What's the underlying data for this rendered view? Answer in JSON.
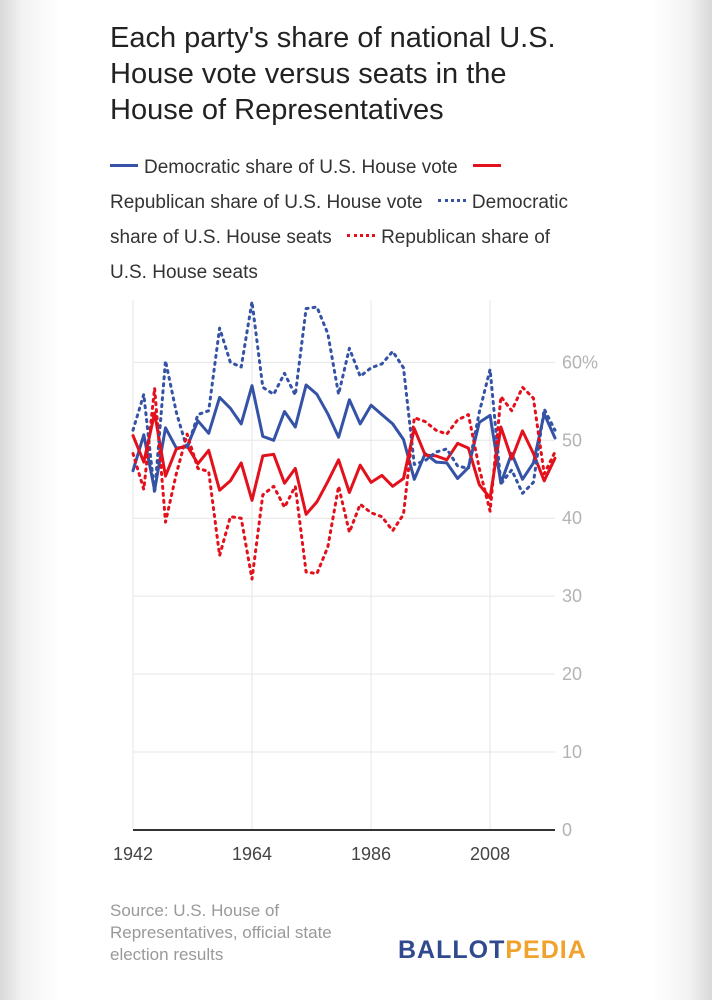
{
  "chart_data": {
    "type": "line",
    "title": "Each party's share of national U.S. House vote versus seats in the House of Representatives",
    "xlabel": "",
    "ylabel": "",
    "xlim": [
      1942,
      2020
    ],
    "ylim": [
      0,
      68
    ],
    "y_ticks": [
      0,
      10,
      20,
      30,
      40,
      50,
      60
    ],
    "y_tick_labels": [
      "0",
      "10",
      "20",
      "30",
      "40",
      "50",
      "60%"
    ],
    "x_tick_labels": [
      "1942",
      "1964",
      "1986",
      "2008"
    ],
    "legend": [
      "Democratic share of U.S. House vote",
      "Republican share of U.S. House vote",
      "Democratic share of U.S. House seats",
      "Republican share of U.S. House seats"
    ],
    "x": [
      1942,
      1944,
      1946,
      1948,
      1950,
      1952,
      1954,
      1956,
      1958,
      1960,
      1962,
      1964,
      1966,
      1968,
      1970,
      1972,
      1974,
      1976,
      1978,
      1980,
      1982,
      1984,
      1986,
      1988,
      1990,
      1992,
      1994,
      1996,
      1998,
      2000,
      2002,
      2004,
      2006,
      2008,
      2010,
      2012,
      2014,
      2016,
      2018,
      2020
    ],
    "series": [
      {
        "name": "Democratic share of U.S. House vote",
        "color": "#3553a6",
        "style": "solid",
        "values": [
          46.1,
          50.7,
          43.6,
          51.6,
          49.0,
          49.2,
          52.5,
          50.9,
          55.5,
          54.1,
          52.1,
          57.0,
          50.5,
          50.0,
          53.7,
          51.7,
          57.1,
          55.9,
          53.4,
          50.4,
          55.2,
          52.1,
          54.5,
          53.3,
          52.1,
          50.1,
          45.0,
          48.3,
          47.2,
          47.1,
          45.1,
          46.5,
          52.3,
          53.2,
          44.5,
          48.3,
          45.0,
          47.1,
          53.4,
          50.3
        ]
      },
      {
        "name": "Republican share of U.S. House vote",
        "color": "#e2111c",
        "style": "solid",
        "values": [
          50.6,
          47.2,
          53.5,
          45.4,
          48.9,
          49.3,
          47.0,
          48.7,
          43.6,
          44.8,
          47.1,
          42.3,
          48.0,
          48.2,
          44.5,
          46.4,
          40.5,
          42.1,
          44.7,
          47.5,
          43.3,
          46.8,
          44.6,
          45.5,
          44.1,
          45.1,
          51.5,
          48.1,
          48.0,
          47.5,
          49.6,
          49.0,
          44.3,
          42.6,
          51.7,
          47.6,
          51.2,
          48.3,
          44.8,
          47.7
        ]
      },
      {
        "name": "Democratic share of U.S. House seats",
        "color": "#3553a6",
        "style": "dotted",
        "values": [
          51.3,
          55.9,
          43.2,
          60.2,
          53.6,
          48.9,
          53.3,
          53.8,
          64.4,
          60.0,
          59.4,
          67.8,
          56.8,
          55.9,
          58.6,
          55.8,
          66.9,
          67.1,
          63.7,
          55.9,
          61.8,
          58.2,
          59.3,
          59.8,
          61.4,
          59.3,
          46.9,
          47.4,
          48.5,
          48.9,
          46.7,
          46.4,
          53.6,
          59.1,
          44.4,
          46.2,
          43.2,
          44.6,
          54.0,
          51.3
        ]
      },
      {
        "name": "Republican share of U.S. House seats",
        "color": "#e2111c",
        "style": "dotted",
        "values": [
          48.3,
          43.7,
          56.7,
          39.5,
          45.7,
          50.8,
          46.4,
          46.0,
          35.2,
          40.2,
          40.0,
          32.2,
          43.0,
          44.1,
          41.4,
          44.1,
          33.1,
          32.9,
          36.3,
          44.1,
          38.2,
          41.8,
          40.7,
          40.2,
          38.4,
          40.5,
          52.9,
          52.4,
          51.3,
          50.8,
          52.6,
          53.3,
          46.4,
          40.9,
          55.6,
          53.8,
          56.8,
          55.4,
          45.7,
          48.5
        ]
      }
    ]
  },
  "source_text": "Source: U.S. House of Representatives, official state election results",
  "logo": {
    "part1": "BALLOT",
    "part2": "PEDIA"
  }
}
